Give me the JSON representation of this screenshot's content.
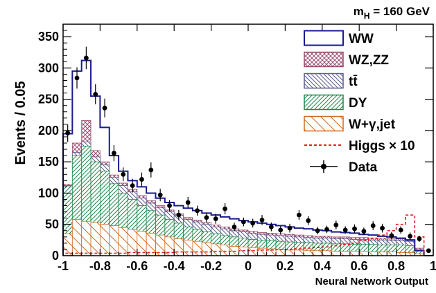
{
  "chart_data": {
    "type": "histogram",
    "title": "m_H = 160 GeV",
    "title_main": "m",
    "title_sub": "H",
    "title_rest": " = 160 GeV",
    "xlabel": "Neural Network Output",
    "ylabel": "Events / 0.05",
    "xlim": [
      -1,
      1
    ],
    "ylim": [
      0,
      370
    ],
    "x_ticks": [
      "-1",
      "-0.8",
      "-0.6",
      "-0.4",
      "-0.2",
      "0",
      "0.2",
      "0.4",
      "0.6",
      "0.8",
      "1"
    ],
    "y_ticks": [
      "0",
      "50",
      "100",
      "150",
      "200",
      "250",
      "300",
      "350"
    ],
    "x_tick_values": [
      -1,
      -0.8,
      -0.6,
      -0.4,
      -0.2,
      0,
      0.2,
      0.4,
      0.6,
      0.8,
      1
    ],
    "y_tick_values": [
      0,
      50,
      100,
      150,
      200,
      250,
      300,
      350
    ],
    "bin_edges_start": -1,
    "bin_width": 0.05,
    "legend_position": "top-right",
    "legend": [
      {
        "label": "WW",
        "style": "outline",
        "color": "#1a1a8c"
      },
      {
        "label": "WZ,ZZ",
        "style": "crosshatch",
        "color": "#9c4a6e"
      },
      {
        "label": "tt̄",
        "style": "hatch-backslash",
        "color": "#5a5a90"
      },
      {
        "label": "DY",
        "style": "hatch-slash",
        "color": "#1e8a4a"
      },
      {
        "label": "W+γ,jet",
        "style": "hatch-backslash",
        "color": "#d2691e"
      },
      {
        "label": "Higgs × 10",
        "style": "dashed-line",
        "color": "#e02020"
      },
      {
        "label": "Data",
        "style": "marker",
        "color": "#000000"
      }
    ],
    "series": [
      {
        "name": "W+γ,jet",
        "values": [
          35,
          58,
          55,
          53,
          50,
          48,
          45,
          42,
          39,
          36,
          33,
          30,
          27,
          25,
          23,
          21,
          19,
          17,
          15,
          14,
          13,
          12,
          11,
          10,
          9,
          9,
          8,
          8,
          8,
          7,
          7,
          7,
          7,
          6,
          6,
          6,
          5,
          5,
          3,
          0
        ]
      },
      {
        "name": "DY",
        "values": [
          110,
          160,
          175,
          150,
          135,
          115,
          100,
          90,
          80,
          72,
          65,
          58,
          52,
          46,
          42,
          38,
          35,
          32,
          30,
          28,
          26,
          25,
          24,
          23,
          22,
          21,
          21,
          20,
          20,
          19,
          19,
          18,
          18,
          18,
          17,
          17,
          17,
          16,
          8,
          0
        ]
      },
      {
        "name": "tt̄",
        "values": [
          112,
          165,
          182,
          158,
          145,
          125,
          112,
          102,
          92,
          84,
          77,
          70,
          64,
          58,
          54,
          50,
          46,
          43,
          40,
          38,
          36,
          34,
          33,
          32,
          31,
          30,
          29,
          28,
          28,
          27,
          27,
          26,
          26,
          25,
          25,
          24,
          24,
          23,
          10,
          0
        ]
      },
      {
        "name": "WZ,ZZ",
        "values": [
          114,
          180,
          216,
          168,
          150,
          129,
          116,
          106,
          96,
          88,
          80,
          73,
          67,
          61,
          57,
          53,
          49,
          46,
          43,
          41,
          39,
          37,
          36,
          35,
          34,
          33,
          32,
          31,
          31,
          30,
          30,
          29,
          29,
          28,
          28,
          27,
          27,
          26,
          12,
          0
        ]
      },
      {
        "name": "WW",
        "values": [
          195,
          295,
          312,
          255,
          205,
          160,
          135,
          120,
          110,
          100,
          92,
          85,
          80,
          76,
          72,
          68,
          65,
          62,
          59,
          56,
          54,
          52,
          50,
          48,
          46,
          44,
          43,
          41,
          40,
          38,
          37,
          36,
          34,
          33,
          31,
          30,
          28,
          25,
          8,
          0
        ]
      },
      {
        "name": "Higgs × 10",
        "values": [
          4,
          4,
          4,
          4,
          4,
          4,
          4,
          5,
          5,
          5,
          5,
          5,
          6,
          6,
          6,
          6,
          7,
          7,
          7,
          8,
          8,
          9,
          9,
          10,
          10,
          11,
          12,
          13,
          14,
          16,
          18,
          20,
          24,
          28,
          33,
          40,
          50,
          65,
          30,
          0
        ]
      }
    ],
    "data_points": {
      "x": [
        -0.975,
        -0.925,
        -0.875,
        -0.825,
        -0.775,
        -0.725,
        -0.675,
        -0.625,
        -0.575,
        -0.525,
        -0.475,
        -0.425,
        -0.375,
        -0.325,
        -0.275,
        -0.225,
        -0.175,
        -0.125,
        -0.075,
        -0.025,
        0.025,
        0.075,
        0.125,
        0.175,
        0.225,
        0.275,
        0.325,
        0.375,
        0.425,
        0.475,
        0.525,
        0.575,
        0.625,
        0.675,
        0.725,
        0.775,
        0.825,
        0.875,
        0.925,
        0.975
      ],
      "y": [
        196,
        284,
        316,
        258,
        236,
        164,
        130,
        112,
        122,
        137,
        97,
        80,
        65,
        85,
        72,
        61,
        59,
        75,
        46,
        54,
        52,
        57,
        46,
        41,
        44,
        65,
        56,
        40,
        42,
        49,
        41,
        43,
        39,
        48,
        44,
        32,
        41,
        31,
        27,
        8
      ],
      "err": [
        14,
        17,
        18,
        16,
        15,
        13,
        11,
        11,
        11,
        12,
        10,
        9,
        8,
        9,
        8,
        8,
        8,
        9,
        7,
        7,
        7,
        8,
        7,
        6,
        7,
        8,
        7,
        6,
        6,
        7,
        6,
        7,
        6,
        7,
        7,
        6,
        6,
        6,
        5,
        3
      ]
    }
  }
}
